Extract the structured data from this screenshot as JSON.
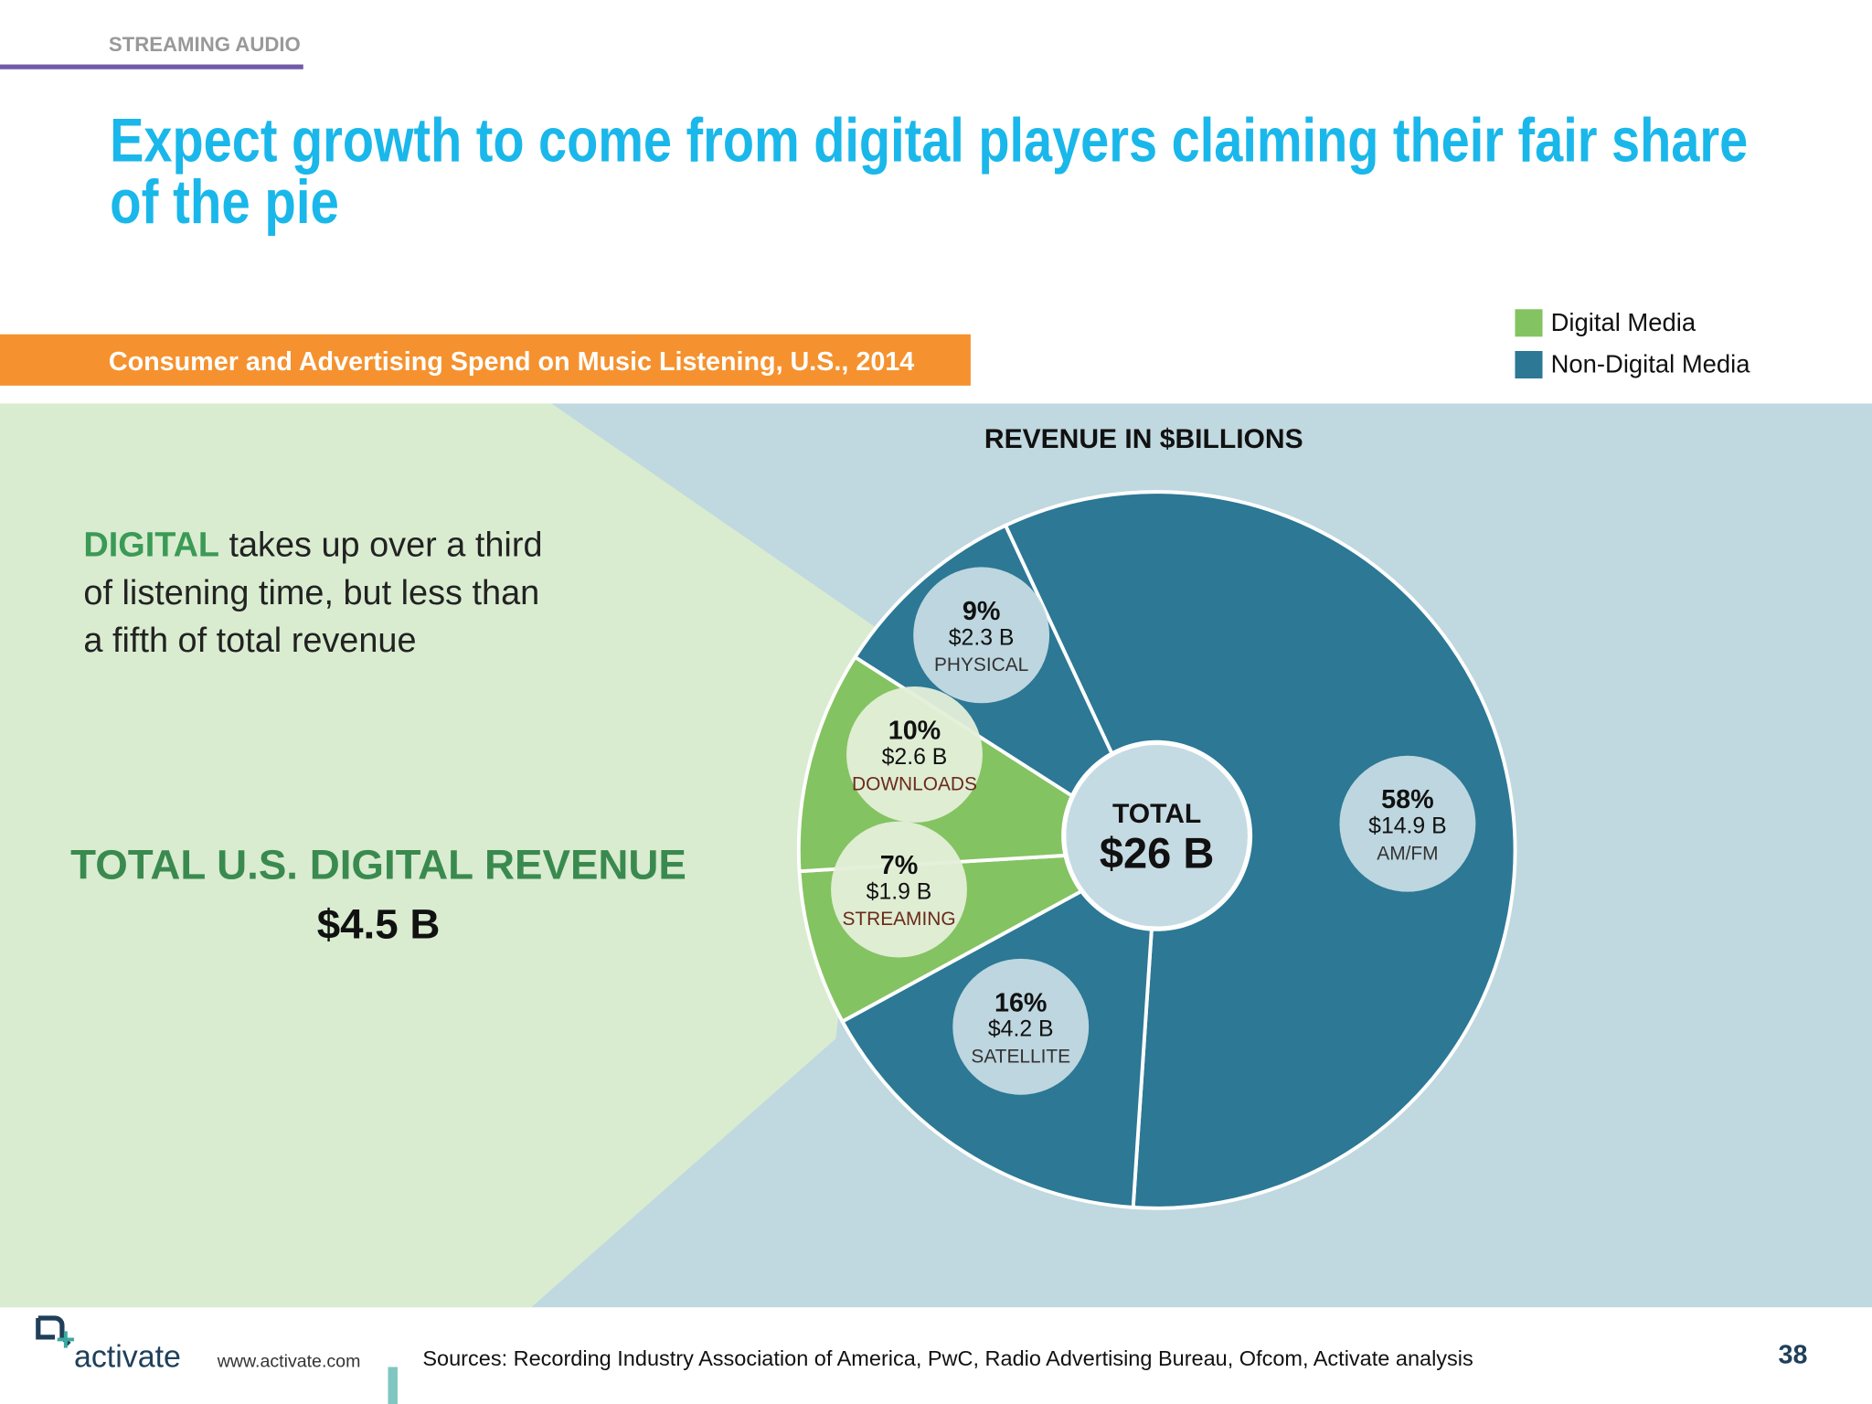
{
  "header": {
    "section": "STREAMING AUDIO",
    "headline": [
      "Expect growth to come from digital players claiming their fair share",
      "of the pie"
    ],
    "subtitle": "Consumer and Advertising Spend on Music Listening, U.S., 2014"
  },
  "callout": {
    "highlight": "DIGITAL",
    "lines": [
      "takes up over a third",
      "of listening time, but less than",
      "a fifth of total revenue"
    ],
    "total_label": "TOTAL U.S. DIGITAL REVENUE",
    "total_value": "$4.5 B"
  },
  "chart_data": {
    "type": "pie",
    "title": "REVENUE IN $BILLIONS",
    "categories": [
      "AM/FM",
      "SATELLITE",
      "STREAMING",
      "DOWNLOADS",
      "PHYSICAL"
    ],
    "values": [
      58,
      16,
      7,
      10,
      9
    ],
    "value_labels": [
      "58%",
      "16%",
      "7%",
      "10%",
      "9%"
    ],
    "revenue_labels": [
      "$14.9 B",
      "$4.2 B",
      "$1.9 B",
      "$2.6 B",
      "$2.3 B"
    ],
    "colors": [
      "#2c7895",
      "#2c7895",
      "#84c361",
      "#84c361",
      "#2c7895"
    ],
    "legend": [
      {
        "name": "Digital Media",
        "color": "#84c361"
      },
      {
        "name": "Non-Digital Media",
        "color": "#2c7895"
      }
    ],
    "total_label": "TOTAL",
    "total_value": "$26 B"
  },
  "footer": {
    "brand": "activate",
    "url": "www.activate.com",
    "sources": "Sources: Recording Industry Association of America, PwC, Radio Advertising Bureau, Ofcom, Activate analysis",
    "page": "38"
  }
}
